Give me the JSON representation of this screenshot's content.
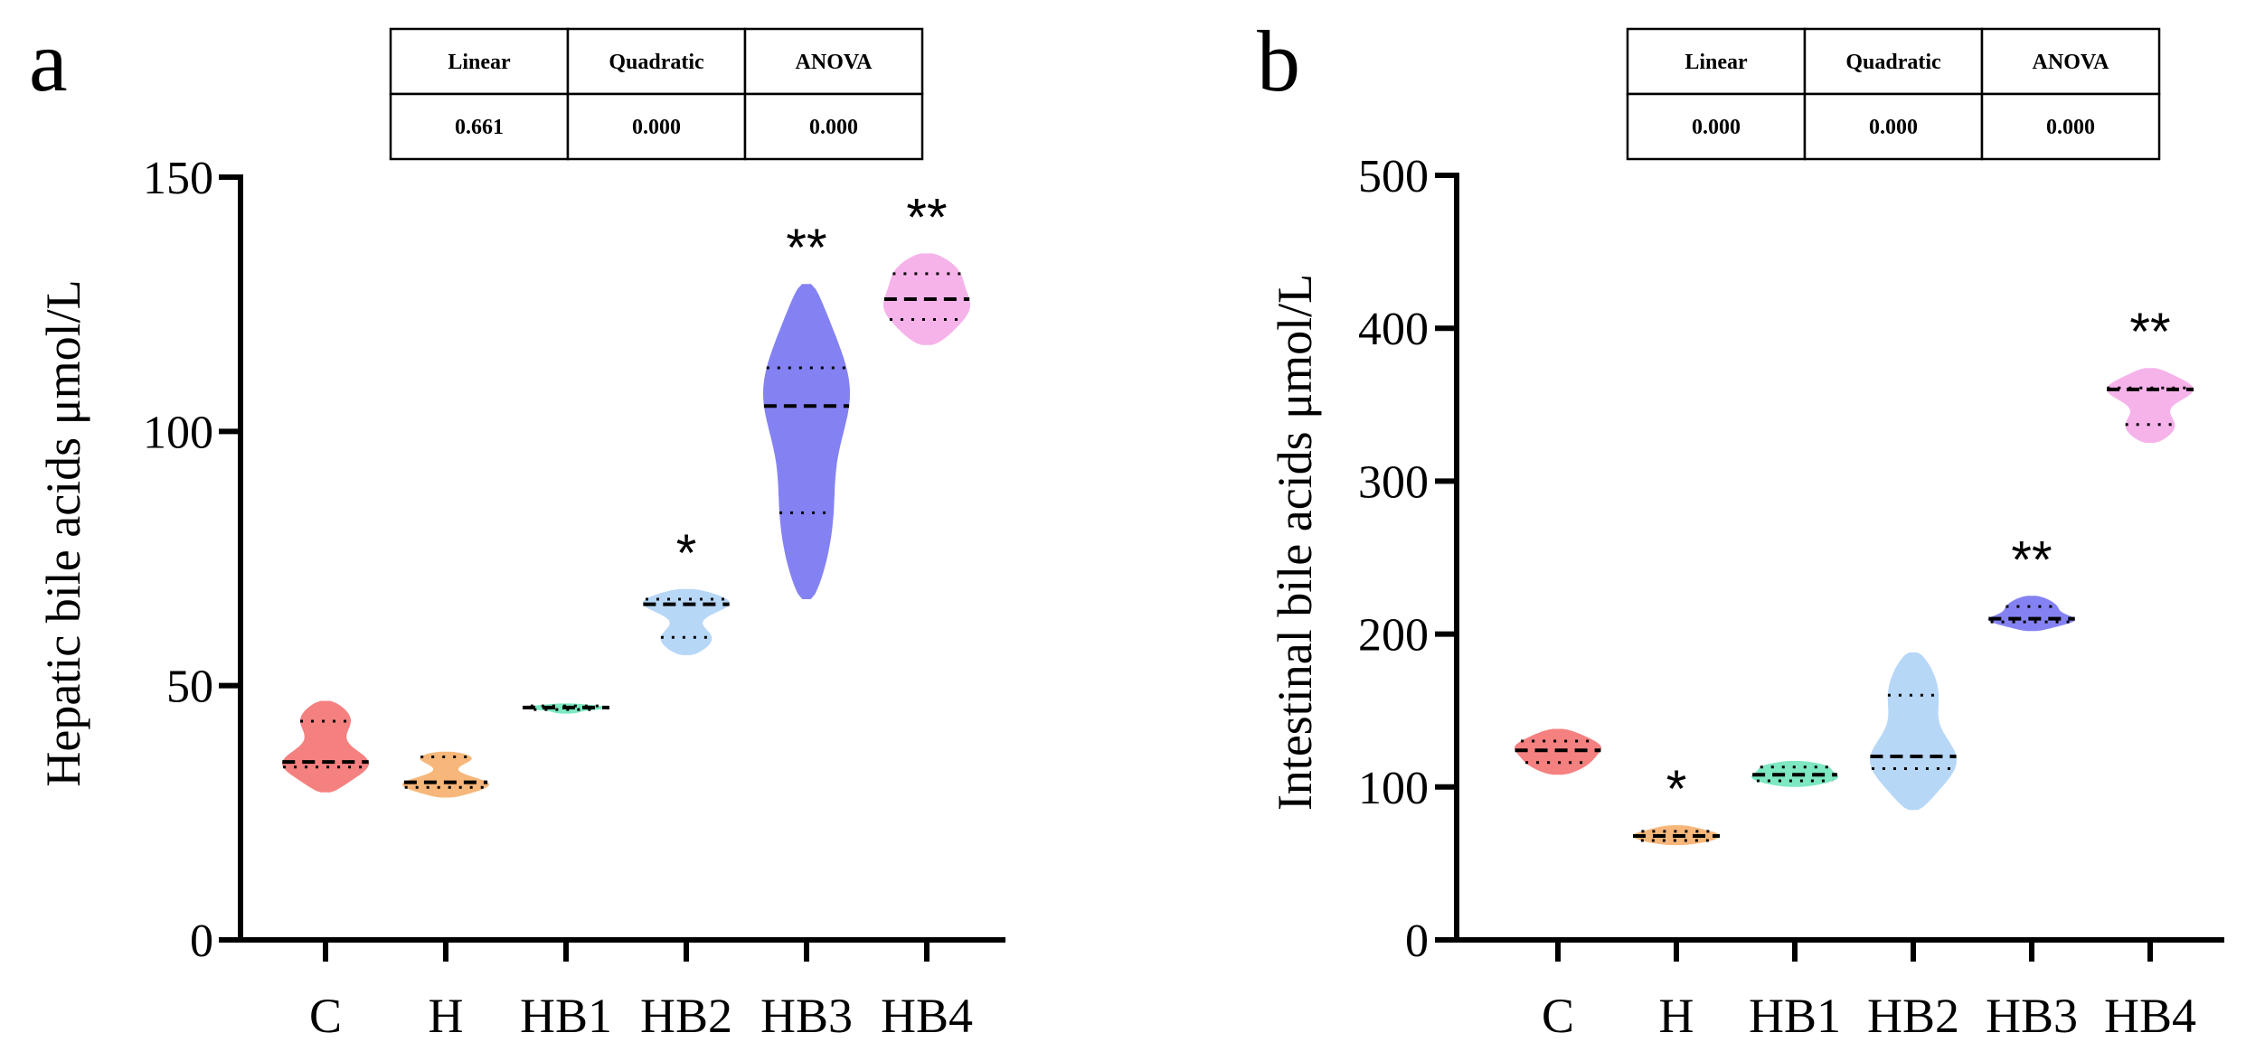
{
  "chart_data": [
    {
      "type": "violin",
      "panel_label": "a",
      "ylabel": "Hepatic bile acids  μmol/L",
      "ylim": [
        0,
        150
      ],
      "yticks": [
        "0",
        "50",
        "100",
        "150"
      ],
      "categories": [
        "C",
        "H",
        "HB1",
        "HB2",
        "HB3",
        "HB4"
      ],
      "colors": [
        "#f58080",
        "#f7b77a",
        "#7de8c2",
        "#b7d7f7",
        "#8482f2",
        "#f6b3ea"
      ],
      "stats": [
        {
          "min": 29,
          "q1": 34,
          "median": 35,
          "q3": 43,
          "max": 47
        },
        {
          "min": 28,
          "q1": 30,
          "median": 31,
          "q3": 36,
          "max": 37
        },
        {
          "min": 44.5,
          "q1": 45.3,
          "median": 45.7,
          "q3": 46,
          "max": 46.5
        },
        {
          "min": 56,
          "q1": 59.5,
          "median": 66,
          "q3": 67,
          "max": 69
        },
        {
          "min": 67,
          "q1": 84,
          "median": 105,
          "q3": 112.5,
          "max": 129
        },
        {
          "min": 117,
          "q1": 122,
          "median": 126,
          "q3": 131,
          "max": 135
        }
      ],
      "significance": [
        "",
        "",
        "",
        "*",
        "**",
        "**"
      ],
      "table": {
        "headers": [
          "Linear",
          "Quadratic",
          "ANOVA"
        ],
        "values": [
          "0.661",
          "0.000",
          "0.000"
        ]
      }
    },
    {
      "type": "violin",
      "panel_label": "b",
      "ylabel": "Intestinal bile acids  μmol/L",
      "ylim": [
        0,
        500
      ],
      "yticks": [
        "0",
        "100",
        "200",
        "300",
        "400",
        "500"
      ],
      "categories": [
        "C",
        "H",
        "HB1",
        "HB2",
        "HB3",
        "HB4"
      ],
      "colors": [
        "#f58080",
        "#f7b77a",
        "#7de8c2",
        "#b7d7f7",
        "#8482f2",
        "#f6b3ea"
      ],
      "stats": [
        {
          "min": 108,
          "q1": 116,
          "median": 124,
          "q3": 130,
          "max": 138
        },
        {
          "min": 62,
          "q1": 65,
          "median": 68,
          "q3": 71,
          "max": 75
        },
        {
          "min": 100,
          "q1": 104,
          "median": 108,
          "q3": 113,
          "max": 117
        },
        {
          "min": 85,
          "q1": 112,
          "median": 120,
          "q3": 160,
          "max": 188
        },
        {
          "min": 202,
          "q1": 208,
          "median": 210,
          "q3": 218,
          "max": 225
        },
        {
          "min": 325,
          "q1": 337,
          "median": 360,
          "q3": 361,
          "max": 374
        }
      ],
      "significance": [
        "",
        "*",
        "",
        "",
        "**",
        "**"
      ],
      "table": {
        "headers": [
          "Linear",
          "Quadratic",
          "ANOVA"
        ],
        "values": [
          "0.000",
          "0.000",
          "0.000"
        ]
      }
    }
  ]
}
